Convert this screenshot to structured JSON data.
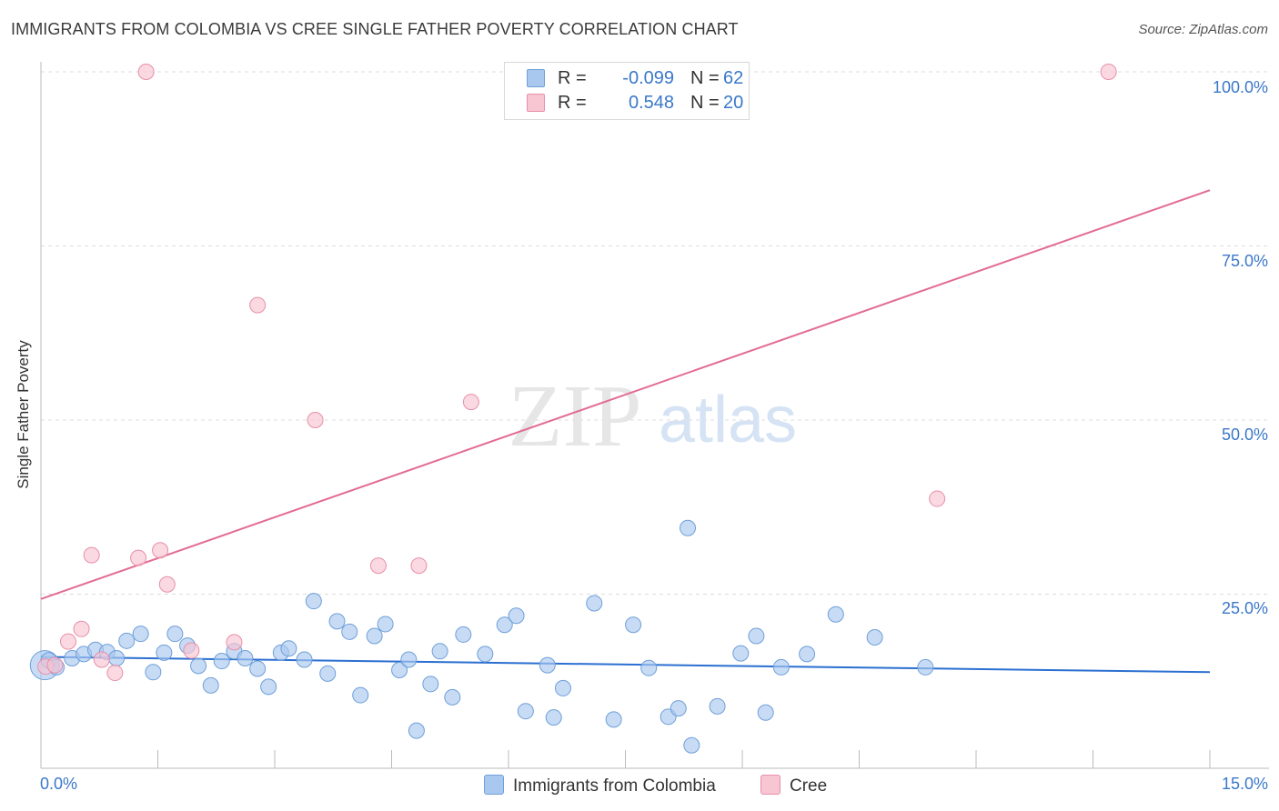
{
  "title": "IMMIGRANTS FROM COLOMBIA VS CREE SINGLE FATHER POVERTY CORRELATION CHART",
  "source": "Source: ZipAtlas.com",
  "watermark": {
    "zip": "ZIP",
    "atlas": "atlas"
  },
  "legend": {
    "rows": [
      {
        "r_label": "R =",
        "r_value": "-0.099",
        "n_label": "N =",
        "n_value": "62",
        "color": "#a9c8ef",
        "border": "#6f9fd8"
      },
      {
        "r_label": "R =",
        "r_value": "0.548",
        "n_label": "N =",
        "n_value": "20",
        "color": "#f8c5d3",
        "border": "#e88fa8"
      }
    ]
  },
  "chart_data": {
    "type": "scatter",
    "title": "IMMIGRANTS FROM COLOMBIA VS CREE SINGLE FATHER POVERTY CORRELATION CHART",
    "xlabel": "",
    "ylabel": "Single Father Poverty",
    "xlim": [
      0,
      15
    ],
    "ylim": [
      0,
      100
    ],
    "x_tick_labels": {
      "min": "0.0%",
      "max": "15.0%"
    },
    "y_ticks": [
      {
        "value": 25,
        "label": "25.0%"
      },
      {
        "value": 50,
        "label": "50.0%"
      },
      {
        "value": 75,
        "label": "75.0%"
      },
      {
        "value": 100,
        "label": "100.0%"
      }
    ],
    "grid": true,
    "legend_position": "bottom-center",
    "series": [
      {
        "name": "Immigrants from Colombia",
        "color": "#a9c8ef",
        "stroke": "#6f9fd8",
        "line_color": "#2b6fd1",
        "trend": {
          "x": [
            0,
            15
          ],
          "y": [
            16.0,
            13.8
          ]
        },
        "points": [
          {
            "x": 0.05,
            "y": 14.8
          },
          {
            "x": 0.1,
            "y": 15.5
          },
          {
            "x": 0.2,
            "y": 14.5
          },
          {
            "x": 0.4,
            "y": 15.8
          },
          {
            "x": 0.55,
            "y": 16.4
          },
          {
            "x": 0.7,
            "y": 17.0
          },
          {
            "x": 0.85,
            "y": 16.7
          },
          {
            "x": 0.97,
            "y": 15.8
          },
          {
            "x": 1.1,
            "y": 18.3
          },
          {
            "x": 1.28,
            "y": 19.3
          },
          {
            "x": 1.44,
            "y": 13.8
          },
          {
            "x": 1.58,
            "y": 16.6
          },
          {
            "x": 1.72,
            "y": 19.3
          },
          {
            "x": 1.88,
            "y": 17.6
          },
          {
            "x": 2.02,
            "y": 14.7
          },
          {
            "x": 2.18,
            "y": 11.9
          },
          {
            "x": 2.32,
            "y": 15.4
          },
          {
            "x": 2.48,
            "y": 16.8
          },
          {
            "x": 2.62,
            "y": 15.8
          },
          {
            "x": 2.78,
            "y": 14.3
          },
          {
            "x": 2.92,
            "y": 11.7
          },
          {
            "x": 3.08,
            "y": 16.6
          },
          {
            "x": 3.18,
            "y": 17.2
          },
          {
            "x": 3.38,
            "y": 15.6
          },
          {
            "x": 3.5,
            "y": 24.0
          },
          {
            "x": 3.68,
            "y": 13.6
          },
          {
            "x": 3.8,
            "y": 21.1
          },
          {
            "x": 3.96,
            "y": 19.6
          },
          {
            "x": 4.1,
            "y": 10.5
          },
          {
            "x": 4.28,
            "y": 19.0
          },
          {
            "x": 4.42,
            "y": 20.7
          },
          {
            "x": 4.6,
            "y": 14.1
          },
          {
            "x": 4.72,
            "y": 15.6
          },
          {
            "x": 4.82,
            "y": 5.4
          },
          {
            "x": 5.0,
            "y": 12.1
          },
          {
            "x": 5.12,
            "y": 16.8
          },
          {
            "x": 5.28,
            "y": 10.2
          },
          {
            "x": 5.42,
            "y": 19.2
          },
          {
            "x": 5.7,
            "y": 16.4
          },
          {
            "x": 5.95,
            "y": 20.6
          },
          {
            "x": 6.1,
            "y": 21.9
          },
          {
            "x": 6.22,
            "y": 8.2
          },
          {
            "x": 6.5,
            "y": 14.8
          },
          {
            "x": 6.58,
            "y": 7.3
          },
          {
            "x": 6.7,
            "y": 11.5
          },
          {
            "x": 7.1,
            "y": 23.7
          },
          {
            "x": 7.35,
            "y": 7.0
          },
          {
            "x": 7.6,
            "y": 20.6
          },
          {
            "x": 7.8,
            "y": 14.4
          },
          {
            "x": 8.05,
            "y": 7.4
          },
          {
            "x": 8.18,
            "y": 8.6
          },
          {
            "x": 8.3,
            "y": 34.5
          },
          {
            "x": 8.35,
            "y": 3.3
          },
          {
            "x": 8.68,
            "y": 8.9
          },
          {
            "x": 8.98,
            "y": 16.5
          },
          {
            "x": 9.18,
            "y": 19.0
          },
          {
            "x": 9.3,
            "y": 8.0
          },
          {
            "x": 9.5,
            "y": 14.5
          },
          {
            "x": 9.83,
            "y": 16.4
          },
          {
            "x": 10.2,
            "y": 22.1
          },
          {
            "x": 10.7,
            "y": 18.8
          },
          {
            "x": 11.35,
            "y": 14.5
          }
        ]
      },
      {
        "name": "Cree",
        "color": "#f8c5d3",
        "stroke": "#e88fa8",
        "line_color": "#e36b93",
        "trend": {
          "x": [
            0,
            15
          ],
          "y": [
            24.3,
            83.0
          ]
        },
        "points": [
          {
            "x": 0.06,
            "y": 14.6
          },
          {
            "x": 0.18,
            "y": 14.8
          },
          {
            "x": 0.35,
            "y": 18.2
          },
          {
            "x": 0.52,
            "y": 20.0
          },
          {
            "x": 0.65,
            "y": 30.6
          },
          {
            "x": 0.78,
            "y": 15.6
          },
          {
            "x": 0.95,
            "y": 13.7
          },
          {
            "x": 1.25,
            "y": 30.2
          },
          {
            "x": 1.35,
            "y": 100.0
          },
          {
            "x": 1.53,
            "y": 31.3
          },
          {
            "x": 1.62,
            "y": 26.4
          },
          {
            "x": 1.93,
            "y": 16.9
          },
          {
            "x": 2.48,
            "y": 18.1
          },
          {
            "x": 2.78,
            "y": 66.5
          },
          {
            "x": 3.52,
            "y": 50.0
          },
          {
            "x": 4.33,
            "y": 29.1
          },
          {
            "x": 4.85,
            "y": 29.1
          },
          {
            "x": 5.52,
            "y": 52.6
          },
          {
            "x": 11.5,
            "y": 38.7
          },
          {
            "x": 13.7,
            "y": 100.0
          }
        ]
      }
    ]
  }
}
